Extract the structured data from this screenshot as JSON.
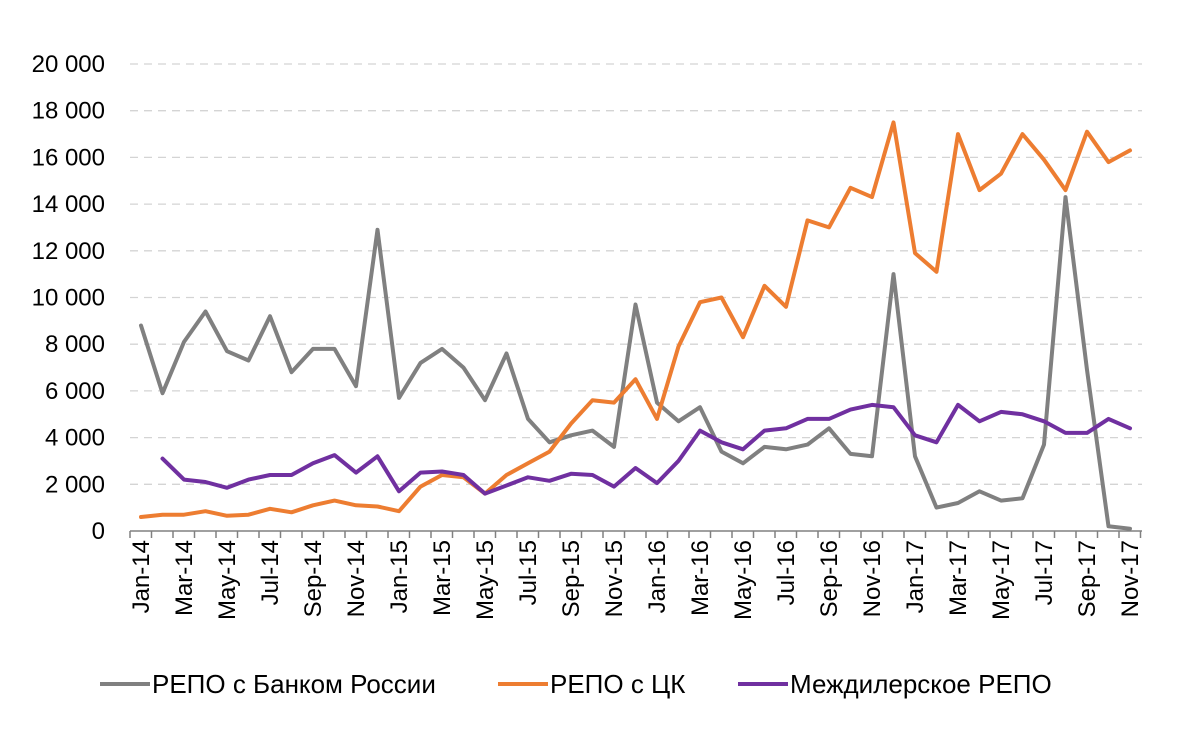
{
  "chart_data": {
    "type": "line",
    "ylim": [
      0,
      20000
    ],
    "yticks": [
      "0",
      "2 000",
      "4 000",
      "6 000",
      "8 000",
      "10 000",
      "12 000",
      "14 000",
      "16 000",
      "18 000",
      "20 000"
    ],
    "categories": [
      "Jan-14",
      "Feb-14",
      "Mar-14",
      "Apr-14",
      "May-14",
      "Jun-14",
      "Jul-14",
      "Aug-14",
      "Sep-14",
      "Oct-14",
      "Nov-14",
      "Dec-14",
      "Jan-15",
      "Feb-15",
      "Mar-15",
      "Apr-15",
      "May-15",
      "Jun-15",
      "Jul-15",
      "Aug-15",
      "Sep-15",
      "Oct-15",
      "Nov-15",
      "Dec-15",
      "Jan-16",
      "Feb-16",
      "Mar-16",
      "Apr-16",
      "May-16",
      "Jun-16",
      "Jul-16",
      "Aug-16",
      "Sep-16",
      "Oct-16",
      "Nov-16",
      "Dec-16",
      "Jan-17",
      "Feb-17",
      "Mar-17",
      "Apr-17",
      "May-17",
      "Jun-17",
      "Jul-17",
      "Aug-17",
      "Sep-17",
      "Oct-17",
      "Nov-17"
    ],
    "xtick_labels": [
      "Jan-14",
      "Mar-14",
      "May-14",
      "Jul-14",
      "Sep-14",
      "Nov-14",
      "Jan-15",
      "Mar-15",
      "May-15",
      "Jul-15",
      "Sep-15",
      "Nov-15",
      "Jan-16",
      "Mar-16",
      "May-16",
      "Jul-16",
      "Sep-16",
      "Nov-16",
      "Jan-17",
      "Mar-17",
      "May-17",
      "Jul-17",
      "Sep-17",
      "Nov-17"
    ],
    "grid": true,
    "legend_position": "bottom",
    "series": [
      {
        "name": "РЕПО с Банком России",
        "color": "#808080",
        "values": [
          8800,
          5900,
          8100,
          9400,
          7700,
          7300,
          9200,
          6800,
          7800,
          7800,
          6200,
          12900,
          5700,
          7200,
          7800,
          7000,
          5600,
          7600,
          4800,
          3800,
          4100,
          4300,
          3600,
          9700,
          5500,
          4700,
          5300,
          3400,
          2900,
          3600,
          3500,
          3700,
          4400,
          3300,
          3200,
          11000,
          3200,
          1000,
          1200,
          1700,
          1300,
          1400,
          3700,
          14300,
          6900,
          200,
          100
        ]
      },
      {
        "name": "РЕПО с ЦК",
        "color": "#ed7d31",
        "values": [
          600,
          700,
          700,
          850,
          650,
          700,
          950,
          800,
          1100,
          1300,
          1100,
          1050,
          850,
          1900,
          2400,
          2300,
          1600,
          2400,
          2900,
          3400,
          4600,
          5600,
          5500,
          6500,
          4800,
          7900,
          9800,
          10000,
          8300,
          10500,
          9600,
          13300,
          13000,
          14700,
          14300,
          17500,
          11900,
          11100,
          17000,
          14600,
          15300,
          17000,
          15900,
          14600,
          17100,
          15800,
          16300
        ]
      },
      {
        "name": "Междилерское РЕПО",
        "color": "#7030a0",
        "values": [
          null,
          3100,
          2200,
          2100,
          1850,
          2200,
          2400,
          2400,
          2900,
          3250,
          2500,
          3200,
          1700,
          2500,
          2550,
          2400,
          1600,
          1950,
          2300,
          2150,
          2450,
          2400,
          1900,
          2700,
          2050,
          3000,
          4300,
          3800,
          3500,
          4300,
          4400,
          4800,
          4800,
          5200,
          5400,
          5300,
          4100,
          3800,
          5400,
          4700,
          5100,
          5000,
          4700,
          4200,
          4200,
          4800,
          4400
        ]
      }
    ]
  }
}
